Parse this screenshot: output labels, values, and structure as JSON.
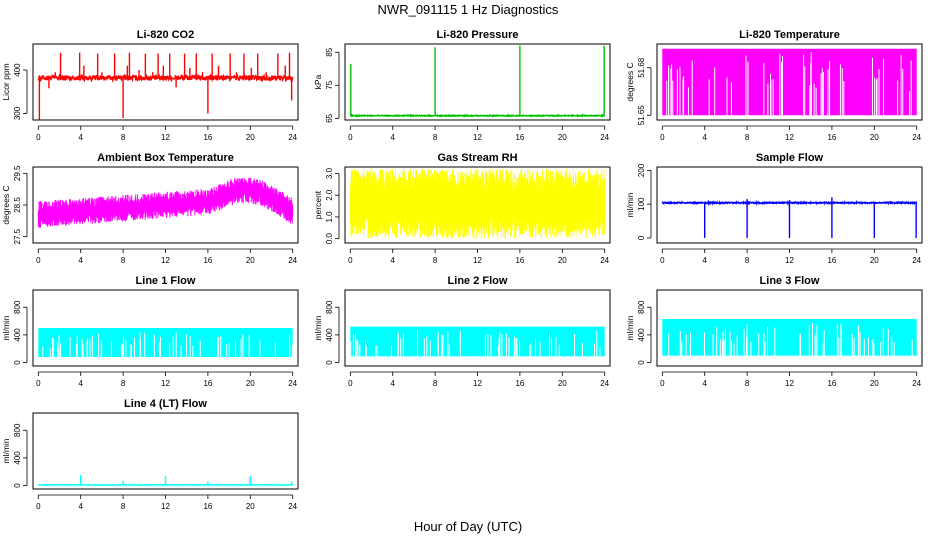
{
  "figure": {
    "title": "NWR_091115  1 Hz Diagnostics",
    "xlabel": "Hour of Day (UTC)"
  },
  "chart_data": [
    {
      "type": "line",
      "title": "Li-820 CO2",
      "ylabel": "Licor ppm",
      "color": "#ff0000",
      "xlim": [
        -0.5,
        24.5
      ],
      "ylim": [
        285,
        460
      ],
      "yticks": [
        300,
        400
      ],
      "ytick_labels": [
        "300",
        "400"
      ],
      "xticks": [
        0,
        4,
        8,
        12,
        16,
        20,
        24
      ],
      "xtick_labels": [
        "0",
        "4",
        "8",
        "12",
        "16",
        "20",
        "24"
      ],
      "baseline": 382,
      "noise": 6,
      "spikes": [
        {
          "x": 0.1,
          "y": 285
        },
        {
          "x": 1.0,
          "y": 358
        },
        {
          "x": 1.6,
          "y": 395
        },
        {
          "x": 2.1,
          "y": 440
        },
        {
          "x": 3.9,
          "y": 440
        },
        {
          "x": 4.3,
          "y": 410
        },
        {
          "x": 5.6,
          "y": 438
        },
        {
          "x": 6.0,
          "y": 395
        },
        {
          "x": 7.2,
          "y": 438
        },
        {
          "x": 8.0,
          "y": 290
        },
        {
          "x": 8.4,
          "y": 410
        },
        {
          "x": 8.6,
          "y": 440
        },
        {
          "x": 9.5,
          "y": 400
        },
        {
          "x": 10.1,
          "y": 438
        },
        {
          "x": 10.8,
          "y": 395
        },
        {
          "x": 11.3,
          "y": 438
        },
        {
          "x": 11.8,
          "y": 410
        },
        {
          "x": 12.4,
          "y": 438
        },
        {
          "x": 13.0,
          "y": 360
        },
        {
          "x": 13.8,
          "y": 438
        },
        {
          "x": 14.3,
          "y": 405
        },
        {
          "x": 14.9,
          "y": 438
        },
        {
          "x": 15.5,
          "y": 395
        },
        {
          "x": 16.0,
          "y": 300
        },
        {
          "x": 16.4,
          "y": 438
        },
        {
          "x": 17.0,
          "y": 410
        },
        {
          "x": 18.1,
          "y": 438
        },
        {
          "x": 18.7,
          "y": 395
        },
        {
          "x": 19.4,
          "y": 438
        },
        {
          "x": 20.1,
          "y": 405
        },
        {
          "x": 20.7,
          "y": 438
        },
        {
          "x": 21.5,
          "y": 395
        },
        {
          "x": 22.6,
          "y": 438
        },
        {
          "x": 23.3,
          "y": 410
        },
        {
          "x": 23.7,
          "y": 440
        },
        {
          "x": 23.9,
          "y": 330
        }
      ]
    },
    {
      "type": "line",
      "title": "Li-820 Pressure",
      "ylabel": "kPa",
      "color": "#00c000",
      "xlim": [
        -0.5,
        24.5
      ],
      "ylim": [
        64.5,
        87.5
      ],
      "yticks": [
        65,
        75,
        85
      ],
      "ytick_labels": [
        "65",
        "75",
        "85"
      ],
      "xticks": [
        0,
        4,
        8,
        12,
        16,
        20,
        24
      ],
      "xtick_labels": [
        "0",
        "4",
        "8",
        "12",
        "16",
        "20",
        "24"
      ],
      "baseline": 65.8,
      "noise": 0.15,
      "spikes": [
        {
          "x": 0.05,
          "y": 81.5
        },
        {
          "x": 8.0,
          "y": 86.5
        },
        {
          "x": 16.0,
          "y": 87.0
        },
        {
          "x": 23.95,
          "y": 87.0
        }
      ]
    },
    {
      "type": "area",
      "title": "Li-820 Temperature",
      "ylabel": "degrees C",
      "color": "#ff00ff",
      "xlim": [
        -0.5,
        24.5
      ],
      "ylim": [
        51.647,
        51.695
      ],
      "yticks": [
        51.65,
        51.68
      ],
      "ytick_labels": [
        "51.65",
        "51.68"
      ],
      "xticks": [
        0,
        4,
        8,
        12,
        16,
        20,
        24
      ],
      "xtick_labels": [
        "0",
        "4",
        "8",
        "12",
        "16",
        "20",
        "24"
      ],
      "top": 51.692,
      "bottom": 51.65
    },
    {
      "type": "line",
      "title": "Ambient Box Temperature",
      "ylabel": "degrees C",
      "color": "#ff00ff",
      "xlim": [
        -0.5,
        24.5
      ],
      "ylim": [
        27.3,
        29.7
      ],
      "yticks": [
        27.5,
        28.5,
        29.5
      ],
      "ytick_labels": [
        "27.5",
        "28.5",
        "29.5"
      ],
      "xticks": [
        0,
        4,
        8,
        12,
        16,
        20,
        24
      ],
      "xtick_labels": [
        "0",
        "4",
        "8",
        "12",
        "16",
        "20",
        "24"
      ],
      "trend": [
        [
          0,
          28.2
        ],
        [
          4,
          28.3
        ],
        [
          8,
          28.4
        ],
        [
          12,
          28.5
        ],
        [
          16,
          28.6
        ],
        [
          19,
          29.0
        ],
        [
          21,
          28.9
        ],
        [
          24,
          28.3
        ]
      ],
      "band": 0.35
    },
    {
      "type": "line",
      "title": "Gas Stream RH",
      "ylabel": "percent",
      "color": "#ffff00",
      "xlim": [
        -0.5,
        24.5
      ],
      "ylim": [
        -0.2,
        3.3
      ],
      "yticks": [
        0.0,
        1.0,
        2.0,
        3.0
      ],
      "ytick_labels": [
        "0.0",
        "1.0",
        "2.0",
        "3.0"
      ],
      "xticks": [
        0,
        4,
        8,
        12,
        16,
        20,
        24
      ],
      "xtick_labels": [
        "0",
        "4",
        "8",
        "12",
        "16",
        "20",
        "24"
      ],
      "center": 1.6,
      "band": 1.4
    },
    {
      "type": "line",
      "title": "Sample Flow",
      "ylabel": "ml/min",
      "color": "#0000ff",
      "xlim": [
        -0.5,
        24.5
      ],
      "ylim": [
        -15,
        210
      ],
      "yticks": [
        0,
        100,
        200
      ],
      "ytick_labels": [
        "0",
        "100",
        "200"
      ],
      "xticks": [
        0,
        4,
        8,
        12,
        16,
        20,
        24
      ],
      "xtick_labels": [
        "0",
        "4",
        "8",
        "12",
        "16",
        "20",
        "24"
      ],
      "baseline": 104,
      "noise": 2,
      "dips": [
        {
          "x": 4.0,
          "y": 0
        },
        {
          "x": 8.0,
          "y": 0
        },
        {
          "x": 12.0,
          "y": 0
        },
        {
          "x": 16.0,
          "y": 0
        },
        {
          "x": 20.0,
          "y": 0
        },
        {
          "x": 23.95,
          "y": 0
        }
      ],
      "spikes": [
        {
          "x": 8.0,
          "y": 115
        },
        {
          "x": 16.0,
          "y": 120
        },
        {
          "x": 12.0,
          "y": 112
        }
      ]
    },
    {
      "type": "area",
      "title": "Line 1 Flow",
      "ylabel": "ml/min",
      "color": "#00ffff",
      "xlim": [
        -0.5,
        24.5
      ],
      "ylim": [
        -50,
        1050
      ],
      "yticks": [
        0,
        400,
        800
      ],
      "ytick_labels": [
        "0",
        "400",
        "800"
      ],
      "xticks": [
        0,
        4,
        8,
        12,
        16,
        20,
        24
      ],
      "xtick_labels": [
        "0",
        "4",
        "8",
        "12",
        "16",
        "20",
        "24"
      ],
      "top": 500,
      "bottom": 80
    },
    {
      "type": "area",
      "title": "Line 2 Flow",
      "ylabel": "ml/min",
      "color": "#00ffff",
      "xlim": [
        -0.5,
        24.5
      ],
      "ylim": [
        -50,
        1050
      ],
      "yticks": [
        0,
        400,
        800
      ],
      "ytick_labels": [
        "0",
        "400",
        "800"
      ],
      "xticks": [
        0,
        4,
        8,
        12,
        16,
        20,
        24
      ],
      "xtick_labels": [
        "0",
        "4",
        "8",
        "12",
        "16",
        "20",
        "24"
      ],
      "top": 520,
      "bottom": 90
    },
    {
      "type": "area",
      "title": "Line 3 Flow",
      "ylabel": "ml/min",
      "color": "#00ffff",
      "xlim": [
        -0.5,
        24.5
      ],
      "ylim": [
        -50,
        1050
      ],
      "yticks": [
        0,
        400,
        800
      ],
      "ytick_labels": [
        "0",
        "400",
        "800"
      ],
      "xticks": [
        0,
        4,
        8,
        12,
        16,
        20,
        24
      ],
      "xtick_labels": [
        "0",
        "4",
        "8",
        "12",
        "16",
        "20",
        "24"
      ],
      "top": 630,
      "bottom": 100
    },
    {
      "type": "line",
      "title": "Line 4 (LT) Flow",
      "ylabel": "ml/min",
      "color": "#00ffff",
      "xlim": [
        -0.5,
        24.5
      ],
      "ylim": [
        -50,
        1050
      ],
      "yticks": [
        0,
        400,
        800
      ],
      "ytick_labels": [
        "0",
        "400",
        "800"
      ],
      "xticks": [
        0,
        4,
        8,
        12,
        16,
        20,
        24
      ],
      "xtick_labels": [
        "0",
        "4",
        "8",
        "12",
        "16",
        "20",
        "24"
      ],
      "baseline": 10,
      "noise": 3,
      "spikes": [
        {
          "x": 4.0,
          "y": 150
        },
        {
          "x": 8.0,
          "y": 70
        },
        {
          "x": 12.0,
          "y": 140
        },
        {
          "x": 16.0,
          "y": 60
        },
        {
          "x": 20.0,
          "y": 140
        },
        {
          "x": 23.9,
          "y": 60
        }
      ]
    }
  ]
}
